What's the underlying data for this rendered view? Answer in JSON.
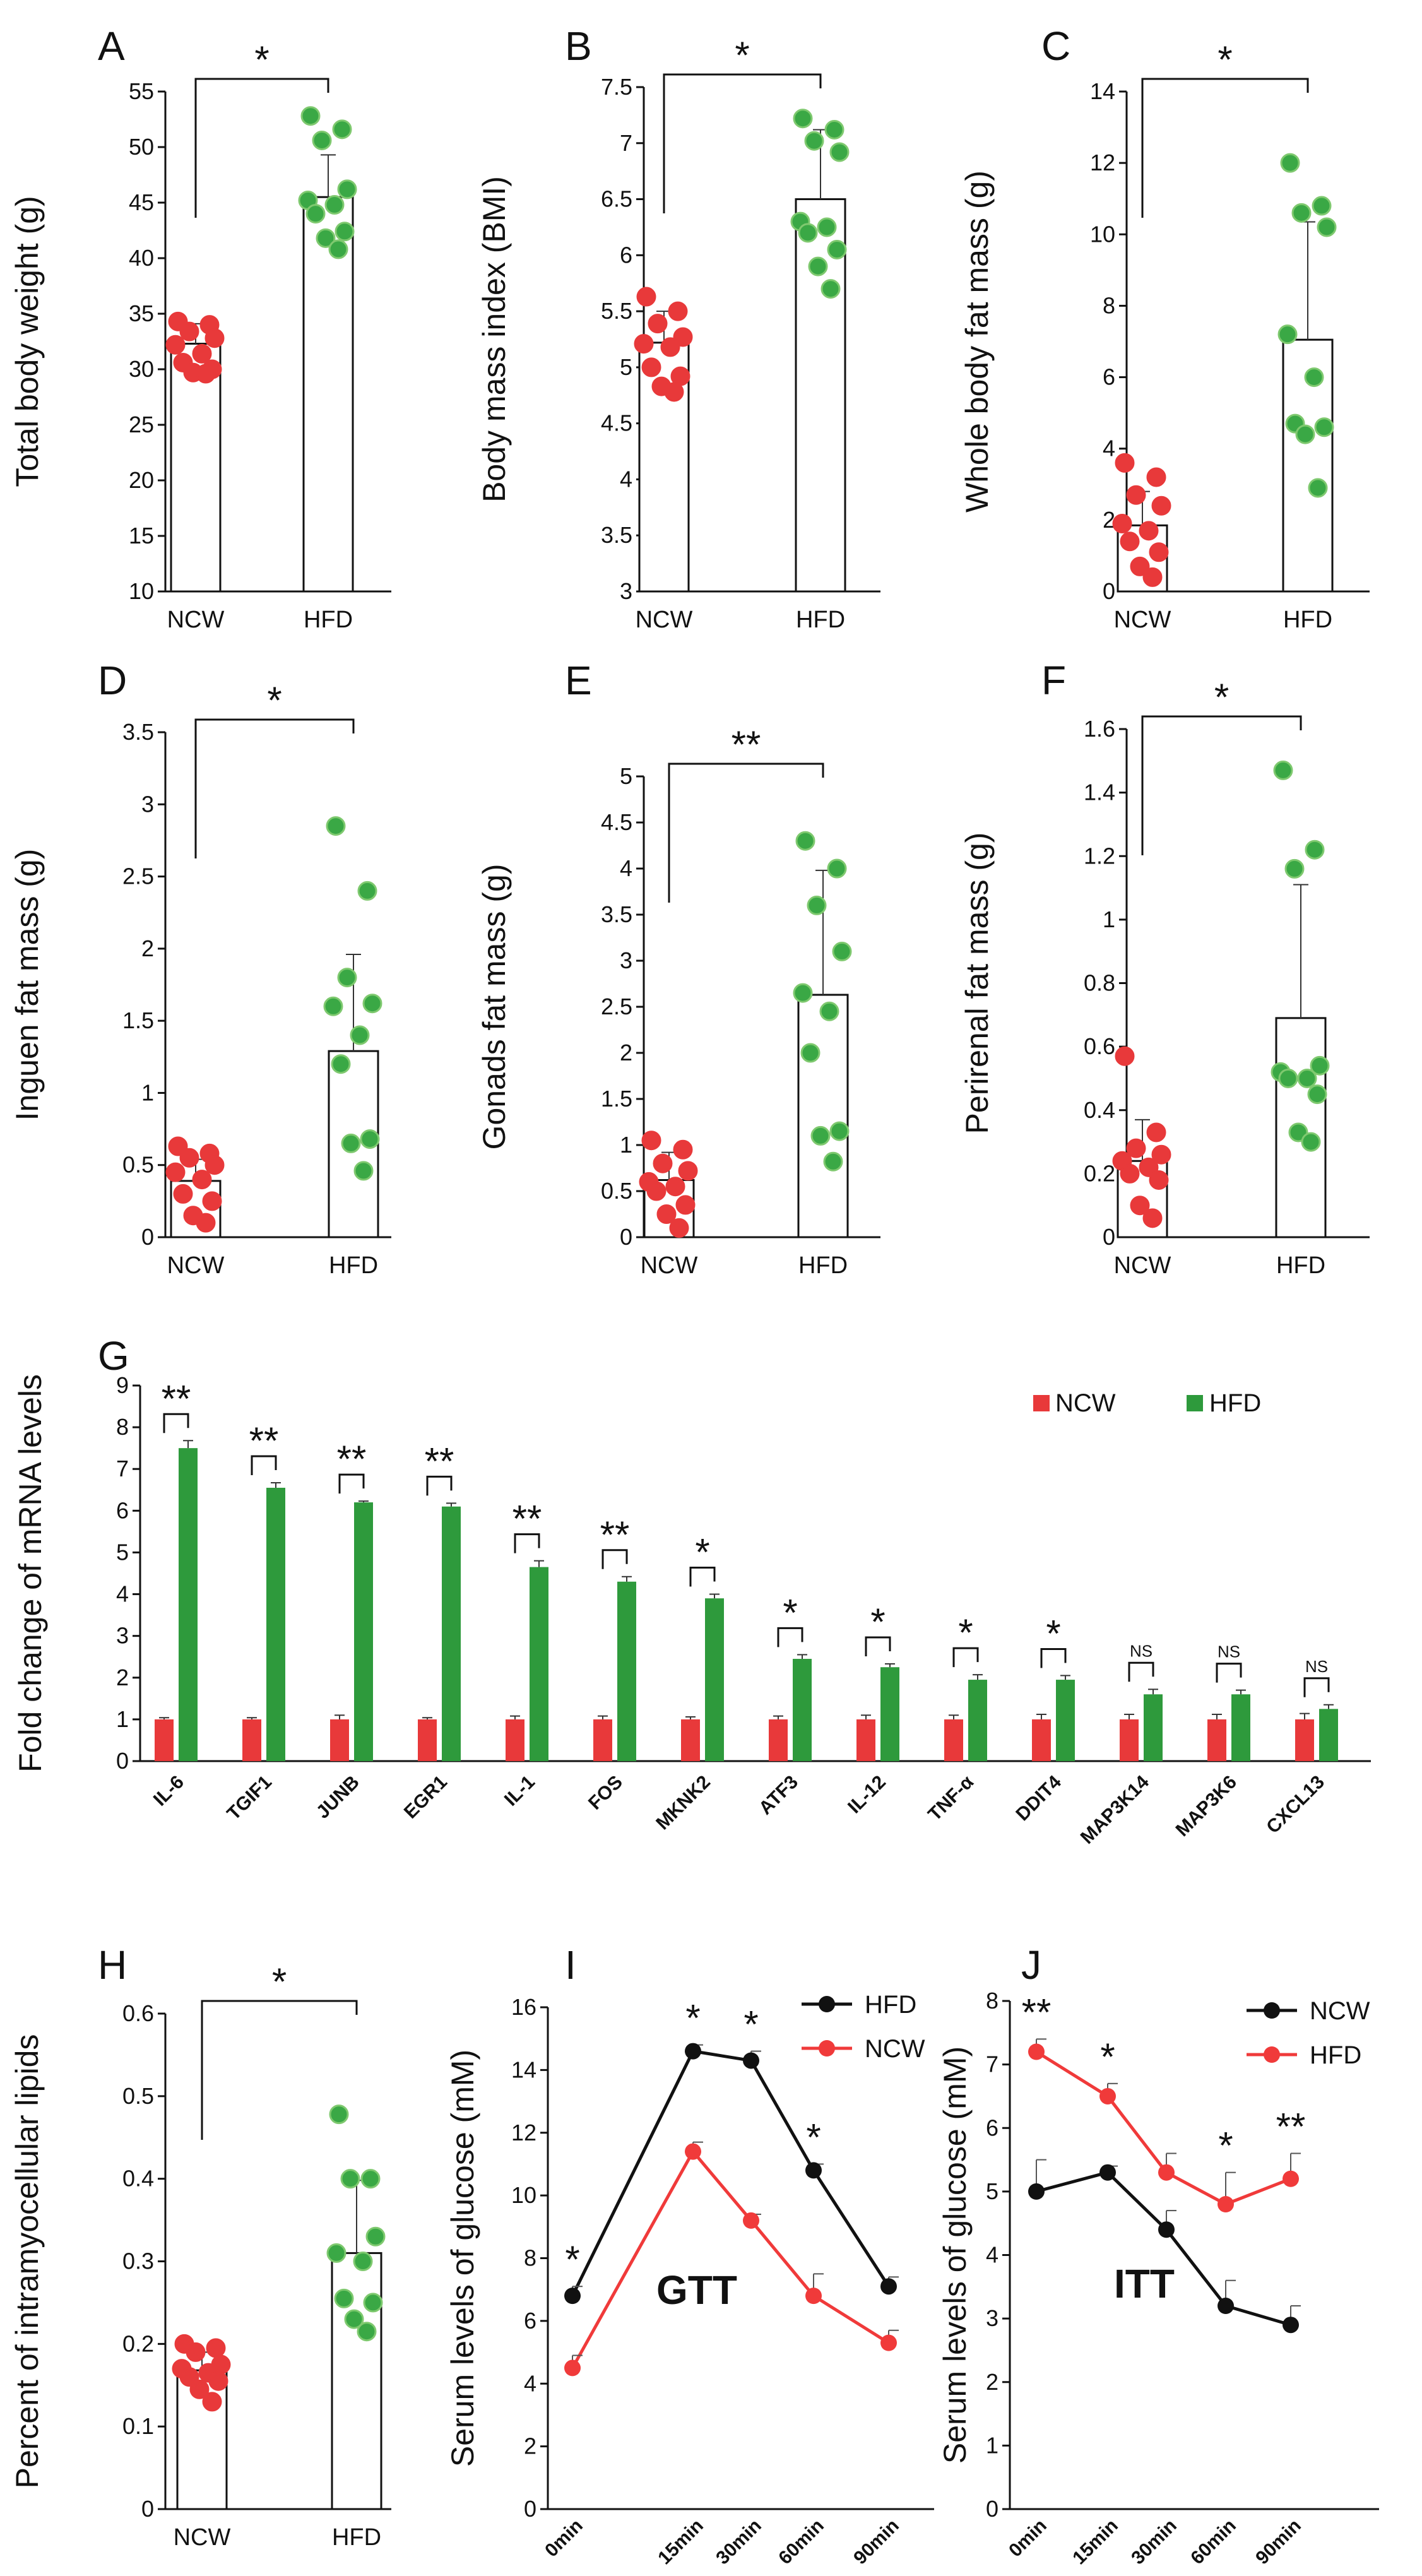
{
  "figure": {
    "background": "#ffffff"
  },
  "colors": {
    "ncw": "#e8393a",
    "hfd": "#2e9a3c",
    "hfd_dot": "#3aa845",
    "hfd_dot_edge": "#7fc96f",
    "axis": "#111111",
    "line_black": "#111111",
    "line_red": "#f03a3a"
  },
  "chart_data": [
    {
      "id": "A",
      "letter": "A",
      "type": "bar",
      "ylabel": "Total body weight (g)",
      "ylim": [
        10,
        55
      ],
      "yticks": [
        10,
        15,
        20,
        25,
        30,
        35,
        40,
        45,
        50,
        55
      ],
      "categories": [
        "NCW",
        "HFD"
      ],
      "means": [
        32.3,
        45.5
      ],
      "errors": [
        1.8,
        3.8
      ],
      "points": [
        [
          34.3,
          34.0,
          33.4,
          32.8,
          32.2,
          31.4,
          30.6,
          30.0,
          29.7,
          29.6
        ],
        [
          52.8,
          51.6,
          50.6,
          46.2,
          45.2,
          44.8,
          44.0,
          42.4,
          41.8,
          40.8
        ]
      ],
      "sig": "*"
    },
    {
      "id": "B",
      "letter": "B",
      "type": "bar",
      "ylabel": "Body mass index (BMI)",
      "ylim": [
        3,
        7.5
      ],
      "yticks": [
        3,
        3.5,
        4,
        4.5,
        5,
        5.5,
        6,
        6.5,
        7,
        7.5
      ],
      "categories": [
        "NCW",
        "HFD"
      ],
      "means": [
        5.22,
        6.5
      ],
      "errors": [
        0.28,
        0.62
      ],
      "points": [
        [
          5.63,
          5.5,
          5.39,
          5.27,
          5.21,
          5.18,
          5.0,
          4.92,
          4.83,
          4.78
        ],
        [
          7.22,
          7.12,
          7.02,
          6.92,
          6.3,
          6.25,
          6.2,
          6.05,
          5.9,
          5.7
        ]
      ],
      "sig": "*"
    },
    {
      "id": "C",
      "letter": "C",
      "type": "bar",
      "ylabel": "Whole body fat mass (g)",
      "ylim": [
        0,
        14
      ],
      "yticks": [
        0,
        2,
        4,
        6,
        8,
        10,
        12,
        14
      ],
      "categories": [
        "NCW",
        "HFD"
      ],
      "means": [
        1.85,
        7.05
      ],
      "errors": [
        0.95,
        3.3
      ],
      "points": [
        [
          3.6,
          3.2,
          2.7,
          2.4,
          1.9,
          1.7,
          1.4,
          1.1,
          0.7,
          0.4
        ],
        [
          12.0,
          10.8,
          10.6,
          10.2,
          7.2,
          6.0,
          4.7,
          4.6,
          4.4,
          2.9
        ]
      ],
      "sig": "*"
    },
    {
      "id": "D",
      "letter": "D",
      "type": "bar",
      "ylabel": "Inguen fat mass (g)",
      "ylim": [
        0,
        3.5
      ],
      "yticks": [
        0,
        0.5,
        1,
        1.5,
        2,
        2.5,
        3,
        3.5
      ],
      "categories": [
        "NCW",
        "HFD"
      ],
      "means": [
        0.39,
        1.29
      ],
      "errors": [
        0.15,
        0.67
      ],
      "points": [
        [
          0.63,
          0.58,
          0.55,
          0.5,
          0.45,
          0.4,
          0.3,
          0.25,
          0.15,
          0.1
        ],
        [
          2.85,
          2.4,
          1.8,
          1.62,
          1.6,
          1.4,
          1.2,
          0.68,
          0.65,
          0.46
        ]
      ],
      "sig": "*"
    },
    {
      "id": "E",
      "letter": "E",
      "type": "bar",
      "ylabel": "Gonads  fat mass (g)",
      "ylim": [
        0,
        5
      ],
      "yticks": [
        0,
        0.5,
        1,
        1.5,
        2,
        2.5,
        3,
        3.5,
        4,
        4.5,
        5
      ],
      "categories": [
        "NCW",
        "HFD"
      ],
      "means": [
        0.62,
        2.63
      ],
      "errors": [
        0.3,
        1.35
      ],
      "points": [
        [
          1.05,
          0.95,
          0.8,
          0.72,
          0.6,
          0.55,
          0.5,
          0.35,
          0.25,
          0.1
        ],
        [
          4.3,
          4.0,
          3.6,
          3.1,
          2.65,
          2.45,
          2.0,
          1.15,
          1.1,
          0.82
        ]
      ],
      "sig": "**"
    },
    {
      "id": "F",
      "letter": "F",
      "type": "bar",
      "ylabel": "Perirenal fat mass (g)",
      "ylim": [
        0,
        1.6
      ],
      "yticks": [
        0,
        0.2,
        0.4,
        0.6,
        0.8,
        1,
        1.2,
        1.4,
        1.6
      ],
      "categories": [
        "NCW",
        "HFD"
      ],
      "means": [
        0.24,
        0.69
      ],
      "errors": [
        0.13,
        0.42
      ],
      "points": [
        [
          0.57,
          0.33,
          0.28,
          0.26,
          0.24,
          0.22,
          0.2,
          0.18,
          0.1,
          0.06
        ],
        [
          1.47,
          1.22,
          1.16,
          0.54,
          0.52,
          0.5,
          0.5,
          0.45,
          0.33,
          0.3
        ]
      ],
      "sig": "*"
    },
    {
      "id": "G",
      "letter": "G",
      "type": "bar",
      "ylabel": "Fold change of mRNA levels",
      "ylim": [
        0,
        9
      ],
      "yticks": [
        0,
        1,
        2,
        3,
        4,
        5,
        6,
        7,
        8,
        9
      ],
      "categories": [
        "IL-6",
        "TGIF1",
        "JUNB",
        "EGR1",
        "IL-1",
        "FOS",
        "MKNK2",
        "ATF3",
        "IL-12",
        "TNF-α",
        "DDIT4",
        "MAP3K14",
        "MAP3K6",
        "CXCL13"
      ],
      "series": [
        {
          "name": "NCW",
          "values": [
            1,
            1,
            1,
            1,
            1,
            1,
            1,
            1,
            1,
            1,
            1,
            1,
            1,
            1
          ],
          "errors": [
            0.04,
            0.04,
            0.1,
            0.04,
            0.08,
            0.08,
            0.06,
            0.08,
            0.1,
            0.1,
            0.12,
            0.12,
            0.12,
            0.14
          ]
        },
        {
          "name": "HFD",
          "values": [
            7.5,
            6.55,
            6.2,
            6.1,
            4.65,
            4.3,
            3.9,
            2.45,
            2.25,
            1.95,
            1.95,
            1.6,
            1.6,
            1.25
          ],
          "errors": [
            0.18,
            0.12,
            0.03,
            0.08,
            0.15,
            0.12,
            0.1,
            0.1,
            0.08,
            0.12,
            0.1,
            0.12,
            0.1,
            0.1
          ]
        }
      ],
      "significance": [
        "**",
        "**",
        "**",
        "**",
        "**",
        "**",
        "*",
        "*",
        "*",
        "*",
        "*",
        "NS",
        "NS",
        "NS"
      ],
      "legend": [
        "NCW",
        "HFD"
      ],
      "legend_position": "top-right"
    },
    {
      "id": "H",
      "letter": "H",
      "type": "bar",
      "ylabel": "Percent of intramyocellular lipids",
      "ylim": [
        0,
        0.6
      ],
      "yticks": [
        0,
        0.1,
        0.2,
        0.3,
        0.4,
        0.5,
        0.6
      ],
      "categories": [
        "NCW",
        "HFD"
      ],
      "means": [
        0.168,
        0.31
      ],
      "errors": [
        0.022,
        0.088
      ],
      "points": [
        [
          0.2,
          0.195,
          0.19,
          0.175,
          0.17,
          0.165,
          0.16,
          0.155,
          0.145,
          0.13
        ],
        [
          0.478,
          0.4,
          0.4,
          0.33,
          0.31,
          0.3,
          0.255,
          0.25,
          0.23,
          0.215
        ]
      ],
      "sig": "*"
    },
    {
      "id": "I",
      "letter": "I",
      "type": "line",
      "ylabel": "Serum levels of glucose (mM)",
      "ylim": [
        0,
        16
      ],
      "yticks": [
        0,
        2,
        4,
        6,
        8,
        10,
        12,
        14,
        16
      ],
      "x": [
        "0min",
        "15min",
        "30min",
        "60min",
        "90min"
      ],
      "series": [
        {
          "name": "HFD",
          "color": "black",
          "values": [
            6.8,
            14.6,
            14.3,
            10.8,
            7.1
          ],
          "errors": [
            0.3,
            0.2,
            0.3,
            0.2,
            0.3
          ]
        },
        {
          "name": "NCW",
          "color": "red",
          "values": [
            4.5,
            11.4,
            9.2,
            6.8,
            5.3
          ],
          "errors": [
            0.4,
            0.3,
            0.2,
            0.7,
            0.4
          ]
        }
      ],
      "significance": [
        "*",
        "*",
        "*",
        "*",
        ""
      ],
      "label": "GTT",
      "legend_position": "top-right"
    },
    {
      "id": "J",
      "letter": "J",
      "type": "line",
      "ylabel": "Serum levels of glucose (mM)",
      "ylim": [
        0,
        8
      ],
      "yticks": [
        0,
        1,
        2,
        3,
        4,
        5,
        6,
        7,
        8
      ],
      "x": [
        "0min",
        "15min",
        "30min",
        "60min",
        "90min"
      ],
      "series": [
        {
          "name": "NCW",
          "color": "black",
          "values": [
            5.0,
            5.3,
            4.4,
            3.2,
            2.9
          ],
          "errors": [
            0.5,
            0.1,
            0.3,
            0.4,
            0.3
          ]
        },
        {
          "name": "HFD",
          "color": "red",
          "values": [
            7.2,
            6.5,
            5.3,
            4.8,
            5.2
          ],
          "errors": [
            0.2,
            0.2,
            0.3,
            0.5,
            0.4
          ]
        }
      ],
      "significance": [
        "**",
        "*",
        "",
        "*",
        "**"
      ],
      "label": "ITT",
      "legend_position": "top-right"
    }
  ]
}
